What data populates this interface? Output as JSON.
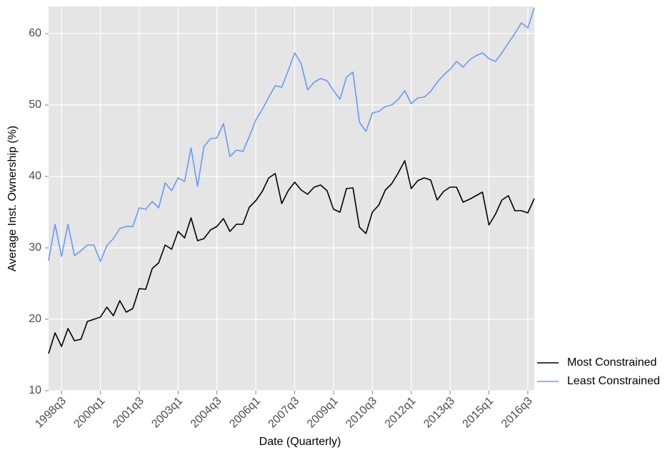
{
  "chart_data": {
    "type": "line",
    "x_label": "Date (Quarterly)",
    "y_label": "Average Inst. Ownership (%)",
    "categories": [
      null,
      null,
      "1998q3",
      null,
      null,
      null,
      null,
      null,
      "2000q1",
      null,
      null,
      null,
      null,
      null,
      "2001q3",
      null,
      null,
      null,
      null,
      null,
      "2003q1",
      null,
      null,
      null,
      null,
      null,
      "2004q3",
      null,
      null,
      null,
      null,
      null,
      "2006q1",
      null,
      null,
      null,
      null,
      null,
      "2007q3",
      null,
      null,
      null,
      null,
      null,
      "2009q1",
      null,
      null,
      null,
      null,
      null,
      "2010q3",
      null,
      null,
      null,
      null,
      null,
      "2012q1",
      null,
      null,
      null,
      null,
      null,
      "2013q3",
      null,
      null,
      null,
      null,
      null,
      "2015q1",
      null,
      null,
      null,
      null,
      null,
      "2016q3",
      null
    ],
    "series": [
      {
        "name": "Most Constrained",
        "color": "#000000",
        "values": [
          15.2,
          18.1,
          16.2,
          18.7,
          17.0,
          17.2,
          19.7,
          20.0,
          20.3,
          21.7,
          20.5,
          22.6,
          21.0,
          21.5,
          24.3,
          24.2,
          27.1,
          27.9,
          30.4,
          29.8,
          32.3,
          31.4,
          34.2,
          31.0,
          31.3,
          32.5,
          33.0,
          34.1,
          32.3,
          33.3,
          33.3,
          35.7,
          36.6,
          37.9,
          39.8,
          40.4,
          36.2,
          38.0,
          39.2,
          38.1,
          37.5,
          38.5,
          38.8,
          38.0,
          35.4,
          35.0,
          38.3,
          38.4,
          32.9,
          32.0,
          35.0,
          36.0,
          38.1,
          39.0,
          40.5,
          42.2,
          38.3,
          39.4,
          39.8,
          39.5,
          36.7,
          37.9,
          38.5,
          38.5,
          36.4,
          36.8,
          37.3,
          37.8,
          33.2,
          34.7,
          36.7,
          37.3,
          35.2,
          35.2,
          34.9,
          36.9
        ]
      },
      {
        "name": "Least Constrained",
        "color": "#6699ff",
        "values": [
          28.2,
          33.3,
          28.8,
          33.3,
          28.9,
          29.6,
          30.4,
          30.4,
          28.1,
          30.3,
          31.3,
          32.7,
          33.0,
          33.0,
          35.6,
          35.4,
          36.5,
          35.6,
          39.1,
          38.0,
          39.8,
          39.3,
          44.0,
          38.6,
          44.2,
          45.3,
          45.4,
          47.4,
          42.8,
          43.7,
          43.5,
          45.6,
          47.9,
          49.4,
          51.1,
          52.7,
          52.5,
          54.8,
          57.3,
          55.8,
          52.1,
          53.2,
          53.7,
          53.4,
          52.0,
          50.8,
          53.9,
          54.6,
          47.6,
          46.3,
          48.9,
          49.1,
          49.8,
          50.0,
          50.8,
          52.0,
          50.2,
          51.0,
          51.1,
          51.9,
          53.2,
          54.2,
          55.0,
          56.1,
          55.3,
          56.3,
          56.9,
          57.3,
          56.5,
          56.1,
          57.3,
          58.7,
          60.0,
          61.5,
          60.8,
          63.6
        ]
      }
    ],
    "ylim": [
      10,
      63.8
    ],
    "yticks": [
      10,
      20,
      30,
      40,
      50,
      60
    ],
    "grid": true,
    "legend": "bottom-right"
  }
}
